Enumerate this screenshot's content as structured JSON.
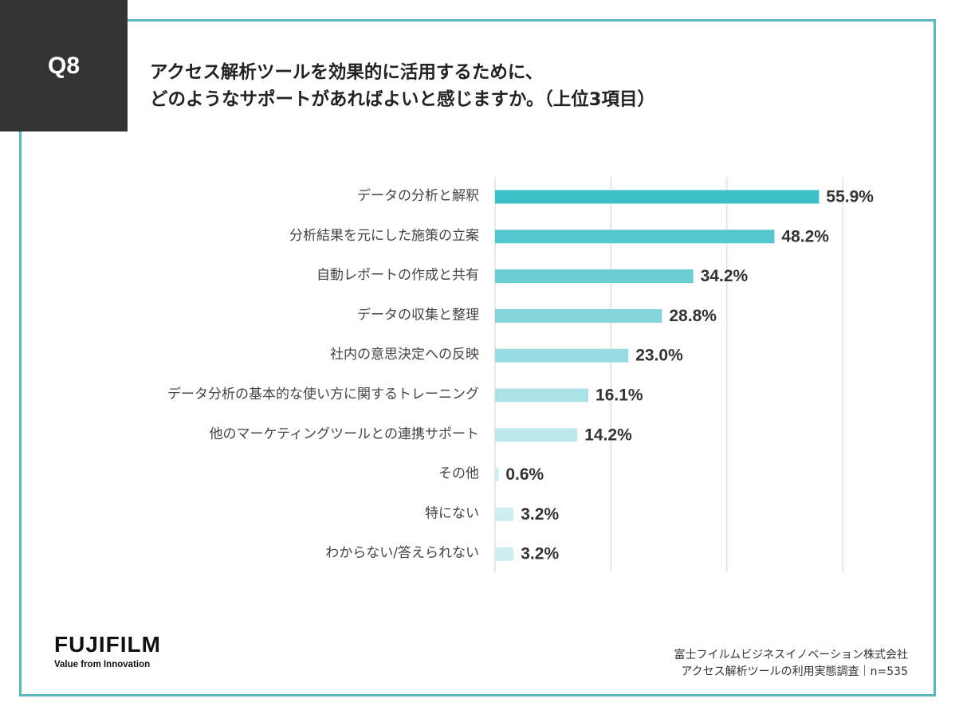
{
  "header": {
    "question_badge": "Q8",
    "title_line1": "アクセス解析ツールを効果的に活用するために、",
    "title_line2": "どのようなサポートがあればよいと感じますか。（上位3項目）"
  },
  "chart_data": {
    "type": "bar",
    "orientation": "horizontal",
    "categories": [
      "データの分析と解釈",
      "分析結果を元にした施策の立案",
      "自動レポートの作成と共有",
      "データの収集と整理",
      "社内の意思決定への反映",
      "データ分析の基本的な使い方に関するトレーニング",
      "他のマーケティングツールとの連携サポート",
      "その他",
      "特にない",
      "わからない/答えられない"
    ],
    "values": [
      55.9,
      48.2,
      34.2,
      28.8,
      23.0,
      16.1,
      14.2,
      0.6,
      3.2,
      3.2
    ],
    "value_labels": [
      "55.9%",
      "48.2%",
      "34.2%",
      "28.8%",
      "23.0%",
      "16.1%",
      "14.2%",
      "0.6%",
      "3.2%",
      "3.2%"
    ],
    "xlim": [
      0,
      60
    ],
    "grid": true,
    "bar_colors": [
      "#3dbfc8",
      "#54c6ce",
      "#6dcdd4",
      "#84d5db",
      "#98dbe0",
      "#acE2e6",
      "#bde8eb",
      "#cdeef0",
      "#cdeef0",
      "#cdeef0"
    ]
  },
  "footer": {
    "logo_text": "FUJIFILM",
    "logo_tagline": "Value from Innovation",
    "source_line1": "富士フイルムビジネスイノベーション株式会社",
    "source_line2": "アクセス解析ツールの利用実態調査｜n=535"
  },
  "colors": {
    "frame": "#5ab8be",
    "badge": "#333333",
    "grid": "#d8d8d8"
  }
}
